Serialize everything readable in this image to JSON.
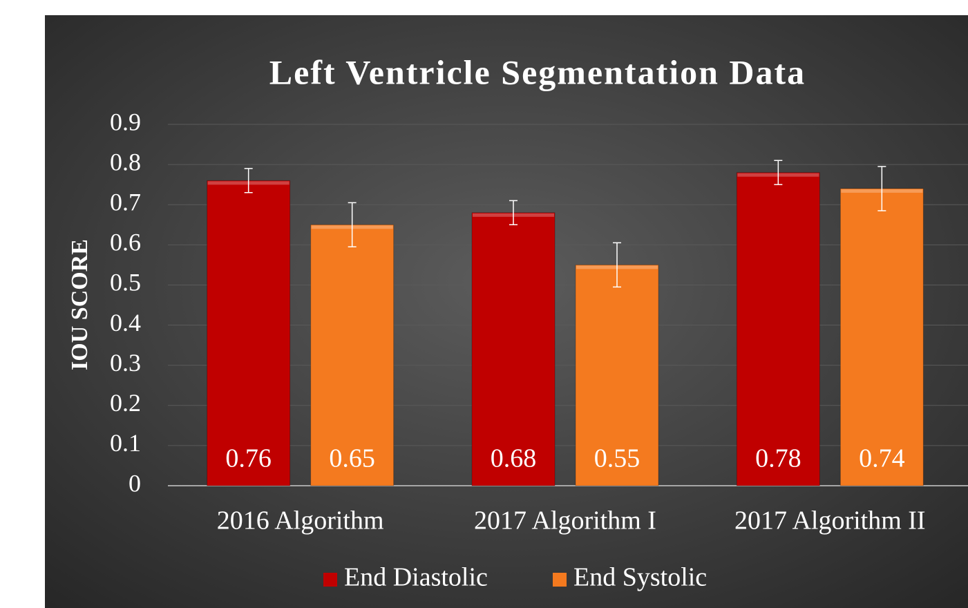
{
  "chart_data": {
    "type": "bar",
    "title": "Left Ventricle Segmentation Data",
    "y_label": "IOU SCORE",
    "categories": [
      "2016 Algorithm",
      "2017 Algorithm I",
      "2017 Algorithm II"
    ],
    "series": [
      {
        "name": "End Diastolic",
        "color": "#c00000",
        "values": [
          0.76,
          0.68,
          0.78
        ],
        "errors": [
          0.03,
          0.03,
          0.03
        ]
      },
      {
        "name": "End Systolic",
        "color": "#f47a1f",
        "values": [
          0.65,
          0.55,
          0.74
        ],
        "errors": [
          0.055,
          0.055,
          0.055
        ]
      }
    ],
    "ylim": [
      0,
      0.9
    ],
    "yticks": [
      0,
      0.1,
      0.2,
      0.3,
      0.4,
      0.5,
      0.6,
      0.7,
      0.8,
      0.9
    ],
    "grid": true,
    "legend": "bottom"
  }
}
